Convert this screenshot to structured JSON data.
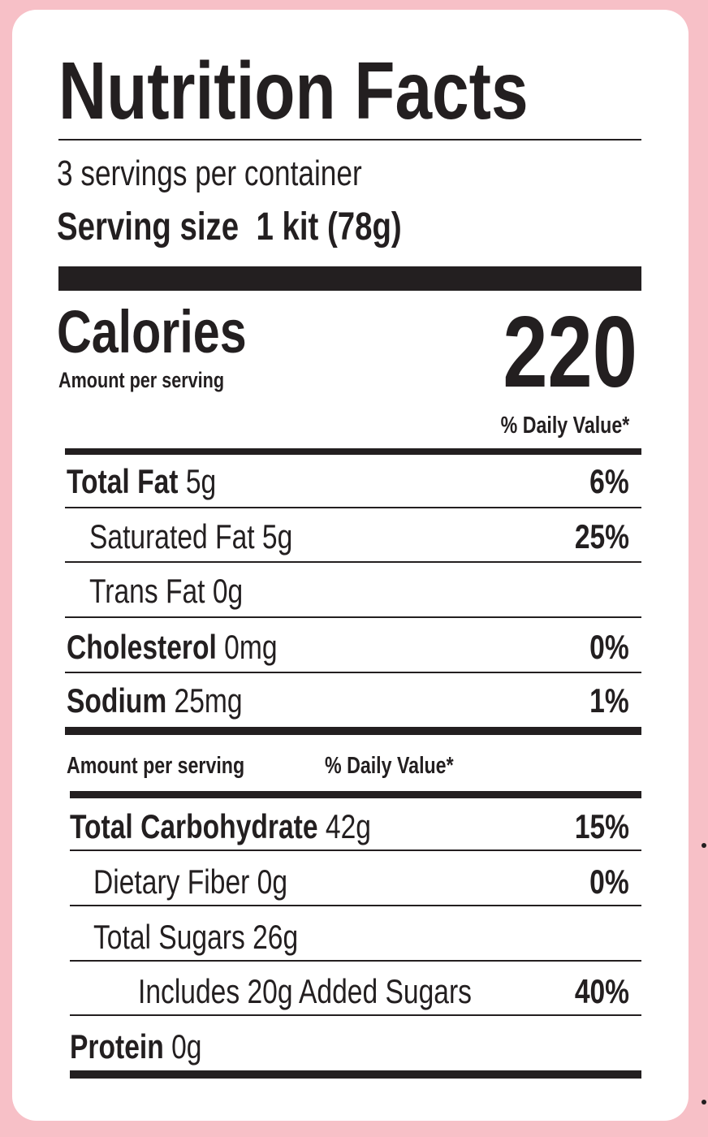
{
  "title": "Nutrition Facts",
  "servings_per_container": "3 servings per container",
  "serving_size_label": "Serving size",
  "serving_size_value": "1 kit (78g)",
  "calories": {
    "label": "Calories",
    "sub": "Amount per serving",
    "value": "220"
  },
  "daily_value_header": "% Daily Value*",
  "nutrients": [
    {
      "name": "Total Fat",
      "amount": "5g",
      "dv": "6%"
    },
    {
      "name": "Saturated Fat",
      "amount": "5g",
      "dv": "25%"
    },
    {
      "name": "Trans Fat",
      "amount": "0g",
      "dv": ""
    },
    {
      "name": "Cholesterol",
      "amount": "0mg",
      "dv": "0%"
    },
    {
      "name": "Sodium",
      "amount": "25mg",
      "dv": "1%"
    }
  ],
  "mid_header": {
    "amount": "Amount per serving",
    "dv": "% Daily Value*"
  },
  "nutrients2": [
    {
      "name": "Total Carbohydrate",
      "amount": "42g",
      "dv": "15%"
    },
    {
      "name": "Dietary Fiber",
      "amount": "0g",
      "dv": "0%"
    },
    {
      "name": "Total Sugars",
      "amount": "26g",
      "dv": ""
    },
    {
      "name": "Includes 20g Added Sugars",
      "amount": "",
      "dv": "40%"
    },
    {
      "name": "Protein",
      "amount": "0g",
      "dv": ""
    }
  ],
  "colors": {
    "background": "#f7c0c7",
    "text": "#231f20",
    "panel": "#ffffff"
  }
}
